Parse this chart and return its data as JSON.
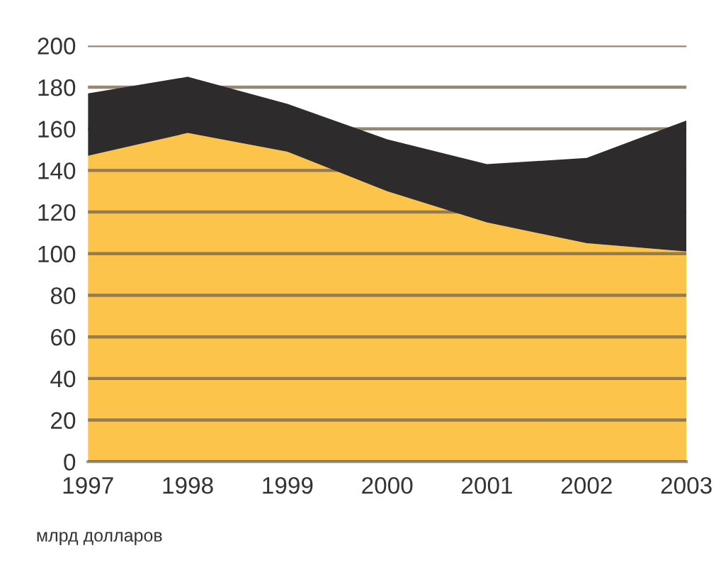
{
  "chart_data": {
    "type": "area",
    "stacked": true,
    "categories": [
      "1997",
      "1998",
      "1999",
      "2000",
      "2001",
      "2002",
      "2003"
    ],
    "series": [
      {
        "color": "#fdc44c",
        "values": [
          147,
          158,
          149,
          130,
          115,
          105,
          101
        ]
      },
      {
        "color": "#2d2b2c",
        "values": [
          30,
          27,
          23,
          25,
          28,
          41,
          63
        ]
      }
    ],
    "ylim": [
      0,
      200
    ],
    "yticks": [
      0,
      20,
      40,
      60,
      80,
      100,
      120,
      140,
      160,
      180,
      200
    ],
    "grid": "y",
    "annotations": [
      "млрд долларов"
    ]
  }
}
